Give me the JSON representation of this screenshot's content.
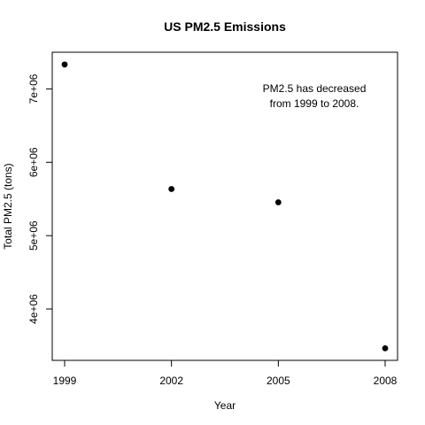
{
  "chart_data": {
    "type": "scatter",
    "title": "US PM2.5 Emissions",
    "xlabel": "Year",
    "ylabel": "Total PM2.5 (tons)",
    "x": [
      1999,
      2002,
      2005,
      2008
    ],
    "y": [
      7332967,
      5635780,
      5454703,
      3464206
    ],
    "xlim": [
      1999,
      2008
    ],
    "ylim": [
      3300000,
      7500000
    ],
    "x_ticks": [
      1999,
      2002,
      2005,
      2008
    ],
    "x_tick_labels": [
      "1999",
      "2002",
      "2005",
      "2008"
    ],
    "y_ticks": [
      4000000,
      5000000,
      6000000,
      7000000
    ],
    "y_tick_labels": [
      "4e+06",
      "5e+06",
      "6e+06",
      "7e+06"
    ],
    "annotation": [
      "PM2.5 has decreased",
      "from 1999 to 2008."
    ],
    "point_color": "#000000",
    "grid": false
  }
}
